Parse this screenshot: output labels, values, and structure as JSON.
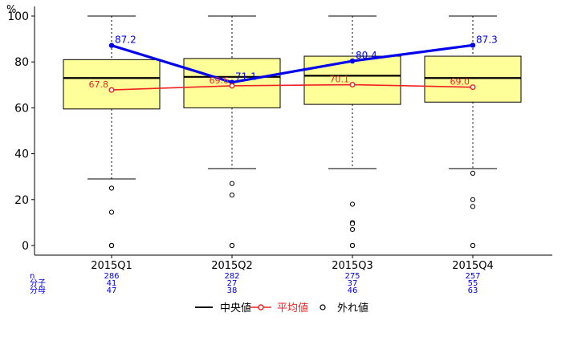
{
  "chart_data": {
    "type": "box",
    "y_unit_label": "%",
    "ylim": [
      0,
      100
    ],
    "yticks": [
      0,
      20,
      40,
      60,
      80,
      100
    ],
    "categories": [
      "2015Q1",
      "2015Q2",
      "2015Q3",
      "2015Q4"
    ],
    "boxes": [
      {
        "category": "2015Q1",
        "whisker_low": 29,
        "q1": 59.5,
        "median": 73,
        "q3": 81,
        "whisker_high": 100,
        "outliers": [
          25,
          14.5,
          0,
          0,
          0
        ]
      },
      {
        "category": "2015Q2",
        "whisker_low": 33.5,
        "q1": 60,
        "median": 73.5,
        "q3": 81.5,
        "whisker_high": 100,
        "outliers": [
          27,
          22,
          0,
          0
        ]
      },
      {
        "category": "2015Q3",
        "whisker_low": 33.5,
        "q1": 61.5,
        "median": 74,
        "q3": 82.5,
        "whisker_high": 100,
        "outliers": [
          18,
          10,
          9.5,
          7,
          0,
          0
        ]
      },
      {
        "category": "2015Q4",
        "whisker_low": 33.5,
        "q1": 62.5,
        "median": 73,
        "q3": 82.5,
        "whisker_high": 100,
        "outliers": [
          31.5,
          20,
          17,
          0,
          0
        ]
      }
    ],
    "series": [
      {
        "name": "",
        "color": "#0000ee",
        "values": [
          87.2,
          71.1,
          80.4,
          87.3
        ],
        "labels": [
          "87.2",
          "71.1",
          "80.4",
          "87.3"
        ]
      },
      {
        "name": "平均値",
        "color": "#ee2222",
        "values": [
          67.8,
          69.6,
          70.1,
          69.0
        ],
        "labels": [
          "67.8",
          "69.6",
          "70.1",
          "69.0"
        ]
      }
    ],
    "count_table": {
      "row_labels": [
        "n",
        "分子",
        "分母"
      ],
      "rows": [
        [
          "286",
          "282",
          "275",
          "257"
        ],
        [
          "41",
          "27",
          "37",
          "55"
        ],
        [
          "47",
          "38",
          "46",
          "63"
        ]
      ]
    },
    "legend": {
      "placement": "bottom",
      "items": [
        {
          "label": "中央値",
          "kind": "median",
          "color": "#000000"
        },
        {
          "label": "平均値",
          "kind": "mean",
          "color": "#ee2222"
        },
        {
          "label": "外れ値",
          "kind": "outlier",
          "color": "#000000"
        }
      ]
    },
    "colors": {
      "box_fill": "#ffff99",
      "median": "#000000",
      "table_text": "#0000ee"
    },
    "grid": false
  }
}
